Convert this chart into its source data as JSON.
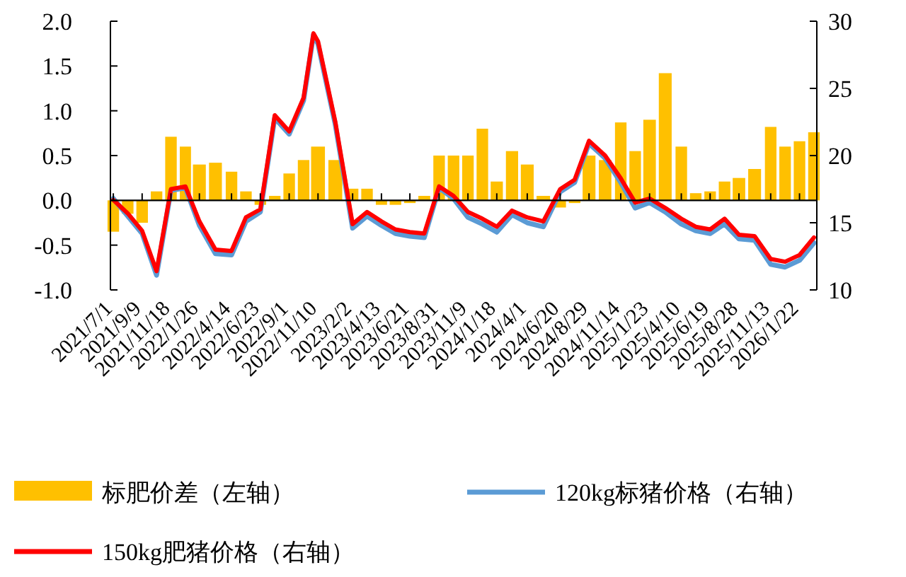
{
  "chart_data": {
    "type": "bar",
    "xlim": [
      "2021-06-24",
      "2026-03-05"
    ],
    "xticks": [
      {
        "value": "2021-07-01",
        "label": "2021/7/1"
      },
      {
        "value": "2021-09-09",
        "label": "2021/9/9"
      },
      {
        "value": "2021-11-18",
        "label": "2021/11/18"
      },
      {
        "value": "2022-01-26",
        "label": "2022/1/26"
      },
      {
        "value": "2022-04-14",
        "label": "2022/4/14"
      },
      {
        "value": "2022-06-23",
        "label": "2022/6/23"
      },
      {
        "value": "2022-09-01",
        "label": "2022/9/1"
      },
      {
        "value": "2022-11-10",
        "label": "2022/11/10"
      },
      {
        "value": "2023-02-02",
        "label": "2023/2/2"
      },
      {
        "value": "2023-04-13",
        "label": "2023/4/13"
      },
      {
        "value": "2023-06-21",
        "label": "2023/6/21"
      },
      {
        "value": "2023-08-31",
        "label": "2023/8/31"
      },
      {
        "value": "2023-11-09",
        "label": "2023/11/9"
      },
      {
        "value": "2024-01-18",
        "label": "2024/1/18"
      },
      {
        "value": "2024-04-01",
        "label": "2024/4/1"
      },
      {
        "value": "2024-06-20",
        "label": "2024/6/20"
      },
      {
        "value": "2024-08-29",
        "label": "2024/8/29"
      },
      {
        "value": "2024-11-14",
        "label": "2024/11/14"
      },
      {
        "value": "2025-01-23",
        "label": "2025/1/23"
      },
      {
        "value": "2025-04-10",
        "label": "2025/4/10"
      },
      {
        "value": "2025-06-19",
        "label": "2025/6/19"
      },
      {
        "value": "2025-08-28",
        "label": "2025/8/28"
      },
      {
        "value": "2025-11-13",
        "label": "2025/11/13"
      },
      {
        "value": "2026-01-22",
        "label": "2026/1/22"
      }
    ],
    "ylim": [
      -1,
      2
    ],
    "yticks": [
      {
        "value": -1,
        "label": "-1.0"
      },
      {
        "value": -0.5,
        "label": "-0.5"
      },
      {
        "value": 0,
        "label": "0.0"
      },
      {
        "value": 0.5,
        "label": "0.5"
      },
      {
        "value": 1,
        "label": "1.0"
      },
      {
        "value": 1.5,
        "label": "1.5"
      },
      {
        "value": 2,
        "label": "2.0"
      }
    ],
    "y2lim": [
      10,
      30
    ],
    "y2ticks": [
      10,
      15,
      20,
      25,
      30
    ],
    "legend": "bottom",
    "series": [
      {
        "name": "标肥价差（左轴）",
        "axis": "y",
        "color": "#ffc000",
        "x": [
          "2021-07-01",
          "2021-08-05",
          "2021-09-09",
          "2021-10-14",
          "2021-11-18",
          "2021-12-23",
          "2022-01-26",
          "2022-03-06",
          "2022-04-14",
          "2022-05-19",
          "2022-06-23",
          "2022-07-28",
          "2022-09-01",
          "2022-10-06",
          "2022-11-10",
          "2022-12-22",
          "2023-02-02",
          "2023-03-09",
          "2023-04-13",
          "2023-05-17",
          "2023-06-21",
          "2023-07-26",
          "2023-08-31",
          "2023-10-05",
          "2023-11-09",
          "2023-12-14",
          "2024-01-18",
          "2024-02-24",
          "2024-04-01",
          "2024-05-10",
          "2024-06-20",
          "2024-07-25",
          "2024-08-29",
          "2024-10-07",
          "2024-11-14",
          "2024-12-19",
          "2025-01-23",
          "2025-03-02",
          "2025-04-10",
          "2025-05-15",
          "2025-06-19",
          "2025-07-24",
          "2025-08-28",
          "2025-10-05",
          "2025-11-13",
          "2025-12-18",
          "2026-01-22",
          "2026-02-26"
        ],
        "values": [
          -0.35,
          -0.15,
          -0.25,
          0.1,
          0.71,
          0.6,
          0.4,
          0.42,
          0.32,
          0.1,
          -0.05,
          0.05,
          0.3,
          0.45,
          0.6,
          0.45,
          0.13,
          0.13,
          -0.05,
          -0.05,
          -0.03,
          0.05,
          0.5,
          0.5,
          0.5,
          0.8,
          0.21,
          0.55,
          0.4,
          0.05,
          -0.08,
          -0.03,
          0.5,
          0.45,
          0.87,
          0.55,
          0.9,
          1.42,
          0.6,
          0.08,
          0.1,
          0.21,
          0.25,
          0.35,
          0.82,
          0.6,
          0.66,
          0.76
        ]
      },
      {
        "name": "120kg标猪价格（右轴）",
        "type": "line",
        "axis": "y2",
        "color": "#5b9bd5",
        "x": [
          "2021-07-01",
          "2021-08-05",
          "2021-09-09",
          "2021-10-14",
          "2021-11-18",
          "2021-12-23",
          "2022-01-26",
          "2022-03-06",
          "2022-04-14",
          "2022-05-19",
          "2022-06-23",
          "2022-07-28",
          "2022-09-01",
          "2022-10-06",
          "2022-10-30",
          "2022-11-10",
          "2022-12-22",
          "2023-02-02",
          "2023-03-09",
          "2023-04-13",
          "2023-05-17",
          "2023-06-21",
          "2023-07-26",
          "2023-08-31",
          "2023-10-05",
          "2023-11-09",
          "2023-12-14",
          "2024-01-18",
          "2024-02-24",
          "2024-04-01",
          "2024-05-10",
          "2024-06-20",
          "2024-07-25",
          "2024-08-29",
          "2024-10-07",
          "2024-11-14",
          "2024-12-19",
          "2025-01-23",
          "2025-03-02",
          "2025-04-10",
          "2025-05-15",
          "2025-06-19",
          "2025-07-24",
          "2025-08-28",
          "2025-10-05",
          "2025-11-13",
          "2025-12-18",
          "2026-01-22",
          "2026-02-26"
        ],
        "values": [
          16.8,
          15.5,
          14.2,
          11.1,
          17.4,
          17.6,
          14.8,
          12.7,
          12.6,
          15.1,
          15.8,
          22.8,
          21.6,
          24.1,
          29.0,
          28.3,
          22.3,
          14.6,
          15.5,
          14.8,
          14.2,
          14.0,
          13.9,
          17.6,
          16.8,
          15.4,
          14.9,
          14.3,
          15.6,
          15.0,
          14.7,
          17.3,
          18.0,
          20.9,
          19.8,
          18.0,
          16.1,
          16.5,
          15.8,
          14.9,
          14.4,
          14.2,
          14.9,
          13.8,
          13.7,
          11.9,
          11.7,
          12.2,
          13.5
        ]
      },
      {
        "name": "150kg肥猪价格（右轴）",
        "type": "line",
        "axis": "y2",
        "color": "#ff0000",
        "x": [
          "2021-07-01",
          "2021-08-05",
          "2021-09-09",
          "2021-10-14",
          "2021-11-18",
          "2021-12-23",
          "2022-01-26",
          "2022-03-06",
          "2022-04-14",
          "2022-05-19",
          "2022-06-23",
          "2022-07-28",
          "2022-09-01",
          "2022-10-06",
          "2022-10-30",
          "2022-11-10",
          "2022-12-22",
          "2023-02-02",
          "2023-03-09",
          "2023-04-13",
          "2023-05-17",
          "2023-06-21",
          "2023-07-26",
          "2023-08-31",
          "2023-10-05",
          "2023-11-09",
          "2023-12-14",
          "2024-01-18",
          "2024-02-24",
          "2024-04-01",
          "2024-05-10",
          "2024-06-20",
          "2024-07-25",
          "2024-08-29",
          "2024-10-07",
          "2024-11-14",
          "2024-12-19",
          "2025-01-23",
          "2025-03-02",
          "2025-04-10",
          "2025-05-15",
          "2025-06-19",
          "2025-07-24",
          "2025-08-28",
          "2025-10-05",
          "2025-11-13",
          "2025-12-18",
          "2026-01-22",
          "2026-02-26"
        ],
        "values": [
          16.7,
          15.7,
          14.4,
          11.4,
          17.5,
          17.7,
          15.1,
          13.0,
          12.9,
          15.4,
          16.0,
          23.0,
          21.8,
          24.3,
          29.1,
          28.5,
          22.5,
          14.9,
          15.8,
          15.1,
          14.5,
          14.3,
          14.2,
          17.7,
          17.0,
          15.8,
          15.3,
          14.7,
          15.9,
          15.4,
          15.1,
          17.5,
          18.2,
          21.1,
          20.0,
          18.3,
          16.5,
          16.8,
          16.1,
          15.3,
          14.7,
          14.5,
          15.3,
          14.1,
          14.0,
          12.3,
          12.1,
          12.6,
          13.9
        ]
      }
    ]
  }
}
